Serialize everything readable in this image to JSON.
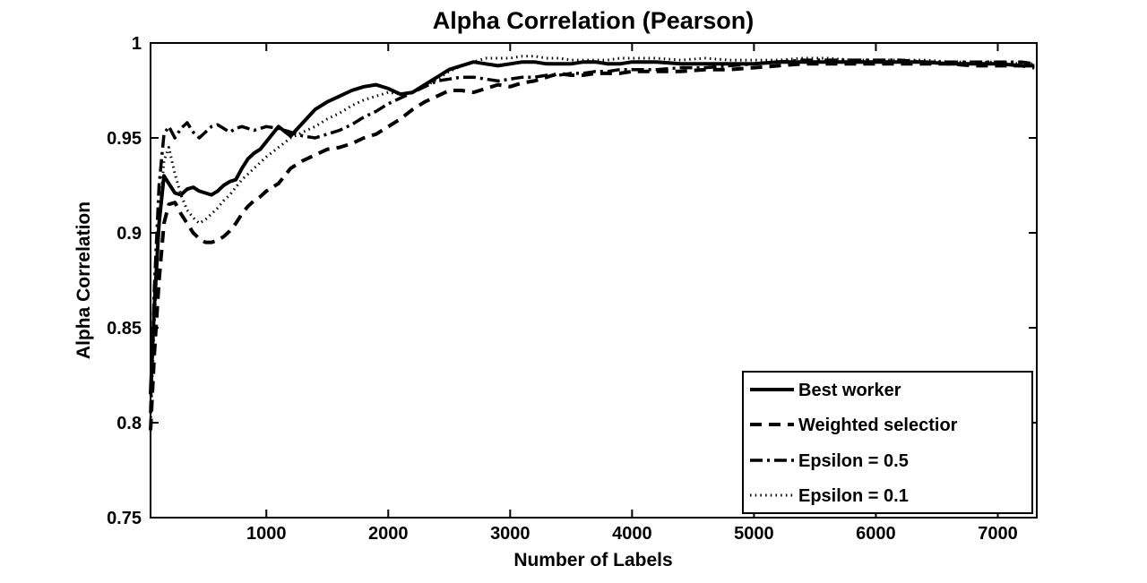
{
  "chart_data": {
    "type": "line",
    "title": "Alpha Correlation (Pearson)",
    "xlabel": "Number of Labels",
    "ylabel": "Alpha Correlation",
    "xlim": [
      50,
      7320
    ],
    "ylim": [
      0.75,
      1.0
    ],
    "xticks": [
      1000,
      2000,
      3000,
      4000,
      5000,
      6000,
      7000
    ],
    "xtick_labels": [
      "1000",
      "2000",
      "3000",
      "4000",
      "5000",
      "6000",
      "7000"
    ],
    "yticks": [
      0.75,
      0.8,
      0.85,
      0.9,
      0.95,
      1
    ],
    "ytick_labels": [
      "0.75",
      "0.8",
      "0.85",
      "0.9",
      "0.95",
      "1"
    ],
    "grid": false,
    "line_color": "#000000",
    "legend_position": "lower-right-inside",
    "x": [
      50,
      80,
      120,
      160,
      200,
      250,
      300,
      350,
      400,
      450,
      500,
      550,
      600,
      650,
      700,
      750,
      800,
      850,
      900,
      950,
      1000,
      1100,
      1200,
      1300,
      1400,
      1500,
      1600,
      1700,
      1800,
      1900,
      2000,
      2100,
      2200,
      2300,
      2400,
      2500,
      2600,
      2700,
      2800,
      2900,
      3000,
      3100,
      3200,
      3300,
      3400,
      3500,
      3600,
      3700,
      3800,
      3900,
      4000,
      4200,
      4400,
      4600,
      4800,
      5000,
      5200,
      5400,
      5600,
      5800,
      6000,
      6200,
      6400,
      6600,
      6800,
      7000,
      7200,
      7300
    ],
    "series": [
      {
        "name": "Best worker",
        "style": "solid",
        "values": [
          0.815,
          0.86,
          0.905,
          0.93,
          0.926,
          0.921,
          0.92,
          0.923,
          0.924,
          0.922,
          0.921,
          0.92,
          0.922,
          0.925,
          0.927,
          0.928,
          0.934,
          0.939,
          0.942,
          0.944,
          0.948,
          0.956,
          0.951,
          0.958,
          0.965,
          0.969,
          0.972,
          0.975,
          0.977,
          0.978,
          0.976,
          0.973,
          0.974,
          0.978,
          0.982,
          0.986,
          0.988,
          0.99,
          0.989,
          0.988,
          0.989,
          0.99,
          0.99,
          0.989,
          0.989,
          0.989,
          0.99,
          0.99,
          0.989,
          0.989,
          0.99,
          0.99,
          0.989,
          0.989,
          0.989,
          0.989,
          0.99,
          0.99,
          0.99,
          0.99,
          0.99,
          0.99,
          0.99,
          0.989,
          0.989,
          0.989,
          0.988,
          0.988
        ]
      },
      {
        "name": "Weighted selectior",
        "style": "dashed",
        "values": [
          0.796,
          0.835,
          0.875,
          0.905,
          0.915,
          0.916,
          0.91,
          0.905,
          0.9,
          0.897,
          0.895,
          0.895,
          0.896,
          0.898,
          0.901,
          0.905,
          0.91,
          0.914,
          0.917,
          0.919,
          0.922,
          0.926,
          0.934,
          0.938,
          0.941,
          0.944,
          0.945,
          0.947,
          0.95,
          0.952,
          0.956,
          0.96,
          0.965,
          0.969,
          0.972,
          0.975,
          0.975,
          0.974,
          0.976,
          0.978,
          0.977,
          0.979,
          0.98,
          0.982,
          0.984,
          0.983,
          0.983,
          0.984,
          0.984,
          0.984,
          0.985,
          0.985,
          0.985,
          0.986,
          0.986,
          0.987,
          0.988,
          0.989,
          0.989,
          0.989,
          0.989,
          0.989,
          0.989,
          0.989,
          0.988,
          0.988,
          0.988,
          0.987
        ]
      },
      {
        "name": "Epsilon = 0.5",
        "style": "dashdot",
        "values": [
          0.805,
          0.87,
          0.925,
          0.952,
          0.956,
          0.95,
          0.955,
          0.958,
          0.953,
          0.95,
          0.953,
          0.956,
          0.957,
          0.955,
          0.953,
          0.955,
          0.956,
          0.955,
          0.954,
          0.955,
          0.956,
          0.955,
          0.953,
          0.951,
          0.95,
          0.952,
          0.954,
          0.957,
          0.961,
          0.964,
          0.968,
          0.971,
          0.974,
          0.977,
          0.98,
          0.981,
          0.982,
          0.982,
          0.981,
          0.98,
          0.981,
          0.982,
          0.982,
          0.983,
          0.983,
          0.984,
          0.984,
          0.985,
          0.985,
          0.986,
          0.986,
          0.986,
          0.987,
          0.987,
          0.988,
          0.989,
          0.99,
          0.991,
          0.991,
          0.991,
          0.991,
          0.991,
          0.99,
          0.99,
          0.99,
          0.99,
          0.99,
          0.989
        ]
      },
      {
        "name": "Epsilon = 0.1",
        "style": "dotted",
        "values": [
          0.8,
          0.85,
          0.905,
          0.938,
          0.945,
          0.931,
          0.92,
          0.912,
          0.908,
          0.905,
          0.907,
          0.91,
          0.913,
          0.917,
          0.92,
          0.924,
          0.928,
          0.931,
          0.934,
          0.937,
          0.94,
          0.945,
          0.95,
          0.953,
          0.956,
          0.96,
          0.963,
          0.967,
          0.97,
          0.972,
          0.974,
          0.973,
          0.974,
          0.977,
          0.981,
          0.985,
          0.988,
          0.99,
          0.992,
          0.992,
          0.992,
          0.993,
          0.993,
          0.992,
          0.992,
          0.991,
          0.991,
          0.991,
          0.991,
          0.992,
          0.992,
          0.992,
          0.991,
          0.992,
          0.991,
          0.991,
          0.991,
          0.992,
          0.992,
          0.991,
          0.991,
          0.991,
          0.991,
          0.99,
          0.99,
          0.99,
          0.989,
          0.989
        ]
      }
    ]
  }
}
